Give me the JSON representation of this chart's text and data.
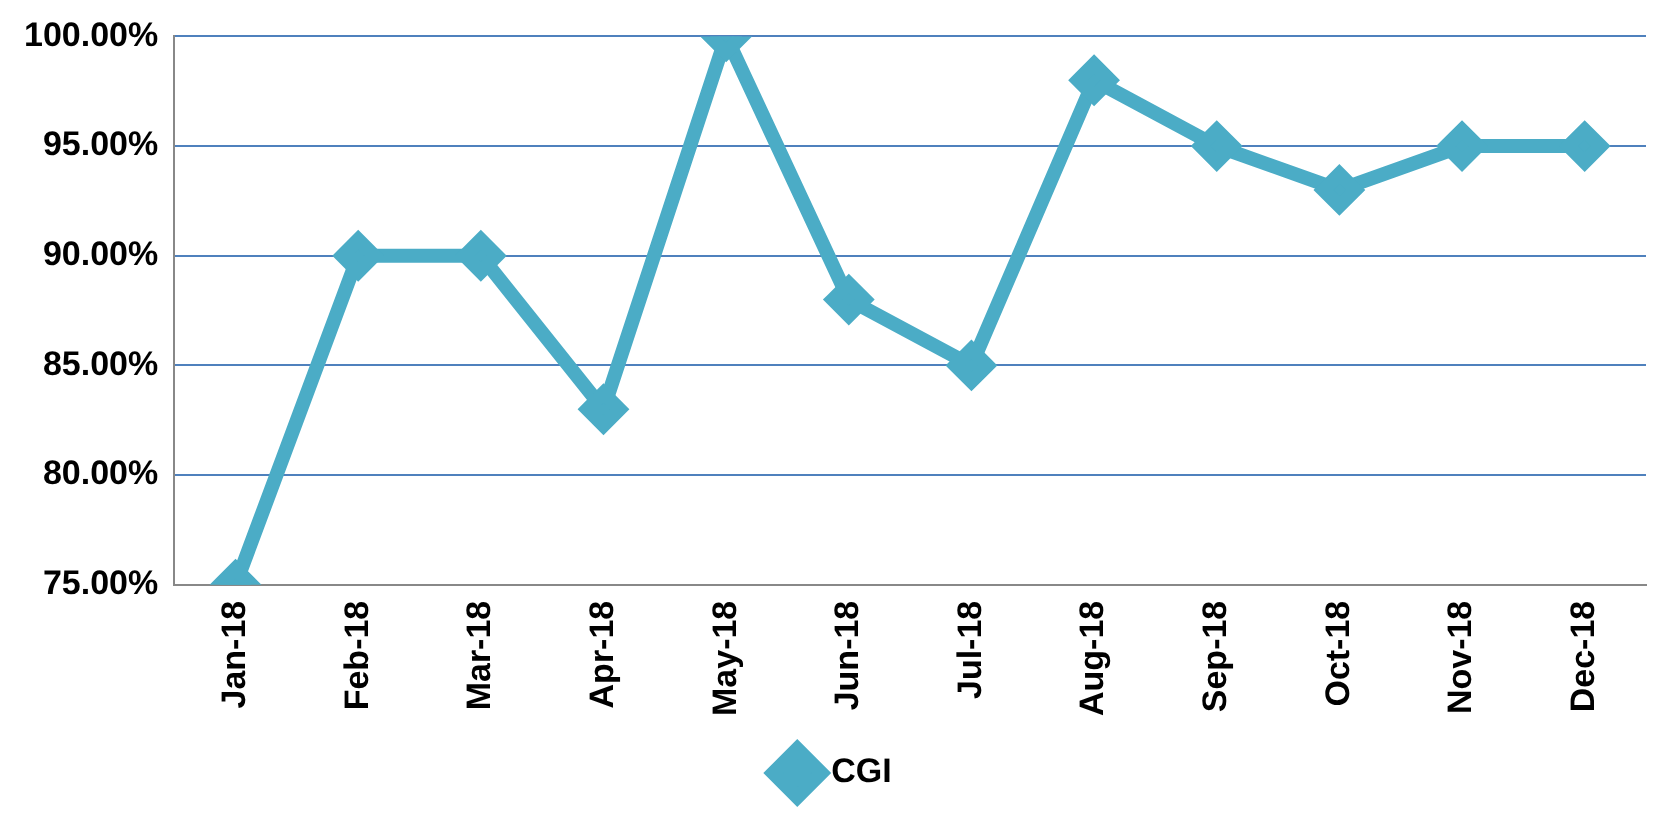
{
  "chart_data": {
    "type": "line",
    "categories": [
      "Jan-18",
      "Feb-18",
      "Mar-18",
      "Apr-18",
      "May-18",
      "Jun-18",
      "Jul-18",
      "Aug-18",
      "Sep-18",
      "Oct-18",
      "Nov-18",
      "Dec-18"
    ],
    "series": [
      {
        "name": "CGI",
        "color": "#4bacc6",
        "values": [
          75,
          90,
          90,
          83,
          100,
          88,
          85,
          98,
          95,
          93,
          95,
          95
        ]
      }
    ],
    "ylim": [
      75,
      100
    ],
    "yticks": [
      {
        "value": 75,
        "label": "75.00%"
      },
      {
        "value": 80,
        "label": "80.00%"
      },
      {
        "value": 85,
        "label": "85.00%"
      },
      {
        "value": 90,
        "label": "90.00%"
      },
      {
        "value": 95,
        "label": "95.00%"
      },
      {
        "value": 100,
        "label": "100.00%"
      }
    ],
    "grid": "y",
    "legend": "bottom",
    "marker": "diamond",
    "line_style": "solid"
  }
}
